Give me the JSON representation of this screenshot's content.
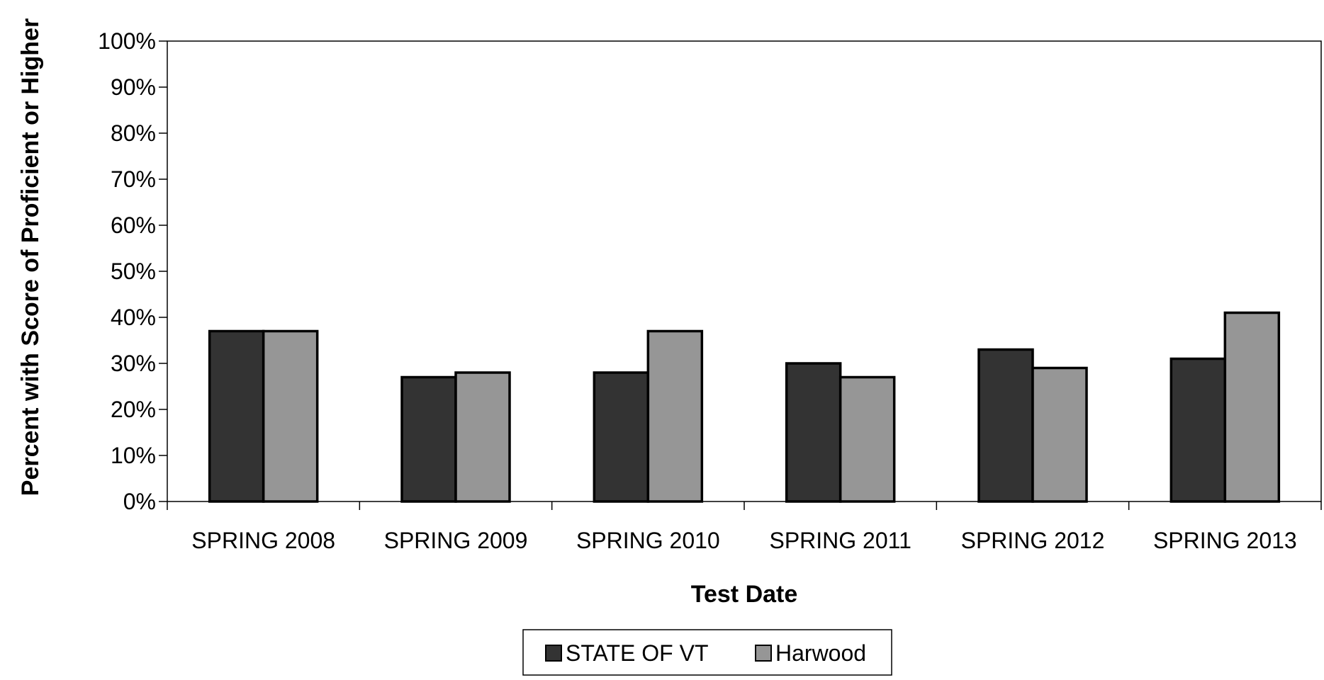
{
  "chart_data": {
    "type": "bar",
    "title": "",
    "xlabel": "Test Date",
    "ylabel": "Percent with Score of Proficient or Higher",
    "categories": [
      "SPRING 2008",
      "SPRING 2009",
      "SPRING 2010",
      "SPRING 2011",
      "SPRING 2012",
      "SPRING 2013"
    ],
    "series": [
      {
        "name": "STATE OF VT",
        "values": [
          37,
          27,
          28,
          30,
          33,
          31
        ],
        "color": "#333333"
      },
      {
        "name": "Harwood",
        "values": [
          37,
          28,
          37,
          27,
          29,
          41
        ],
        "color": "#969696"
      }
    ],
    "ylim": [
      0,
      100
    ],
    "yticks": [
      0,
      10,
      20,
      30,
      40,
      50,
      60,
      70,
      80,
      90,
      100
    ],
    "ytick_labels": [
      "0%",
      "10%",
      "20%",
      "30%",
      "40%",
      "50%",
      "60%",
      "70%",
      "80%",
      "90%",
      "100%"
    ],
    "grid": false,
    "legend_position": "bottom"
  }
}
